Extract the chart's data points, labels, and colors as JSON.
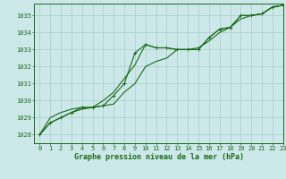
{
  "title": "Graphe pression niveau de la mer (hPa)",
  "bg_color": "#cce8e8",
  "grid_color": "#aacccc",
  "line_color": "#1a6b1a",
  "xlim": [
    -0.5,
    23
  ],
  "ylim": [
    1027.5,
    1035.7
  ],
  "yticks": [
    1028,
    1029,
    1030,
    1031,
    1032,
    1033,
    1034,
    1035
  ],
  "xticks": [
    0,
    1,
    2,
    3,
    4,
    5,
    6,
    7,
    8,
    9,
    10,
    11,
    12,
    13,
    14,
    15,
    16,
    17,
    18,
    19,
    20,
    21,
    22,
    23
  ],
  "series1_x": [
    0,
    1,
    2,
    3,
    4,
    5,
    6,
    7,
    8,
    9,
    10,
    11,
    12,
    13,
    14,
    15,
    16,
    17,
    18,
    19,
    20,
    21,
    22,
    23
  ],
  "series1_y": [
    1028.0,
    1028.7,
    1029.0,
    1029.3,
    1029.6,
    1029.6,
    1029.7,
    1030.3,
    1031.0,
    1032.8,
    1033.3,
    1033.1,
    1033.1,
    1033.0,
    1033.0,
    1033.0,
    1033.7,
    1034.2,
    1034.3,
    1035.0,
    1035.0,
    1035.1,
    1035.5,
    1035.6
  ],
  "series2_x": [
    0,
    1,
    2,
    3,
    4,
    5,
    6,
    7,
    8,
    9,
    10,
    11,
    12,
    13,
    14,
    15,
    16,
    17,
    18,
    19,
    20,
    21,
    22,
    23
  ],
  "series2_y": [
    1028.0,
    1029.0,
    1029.3,
    1029.5,
    1029.6,
    1029.6,
    1030.0,
    1030.5,
    1031.3,
    1032.1,
    1033.3,
    1033.1,
    1033.1,
    1033.0,
    1033.0,
    1033.0,
    1033.7,
    1034.2,
    1034.3,
    1035.0,
    1035.0,
    1035.1,
    1035.5,
    1035.6
  ],
  "series3_x": [
    0,
    1,
    2,
    3,
    4,
    5,
    6,
    7,
    8,
    9,
    10,
    11,
    12,
    13,
    14,
    15,
    16,
    17,
    18,
    19,
    20,
    21,
    22,
    23
  ],
  "series3_y": [
    1028.0,
    1028.7,
    1029.0,
    1029.3,
    1029.5,
    1029.6,
    1029.7,
    1029.8,
    1030.5,
    1031.0,
    1032.0,
    1032.3,
    1032.5,
    1033.0,
    1033.0,
    1033.1,
    1033.5,
    1034.0,
    1034.3,
    1034.8,
    1035.0,
    1035.1,
    1035.5,
    1035.6
  ],
  "tick_fontsize": 5,
  "label_fontsize": 6
}
